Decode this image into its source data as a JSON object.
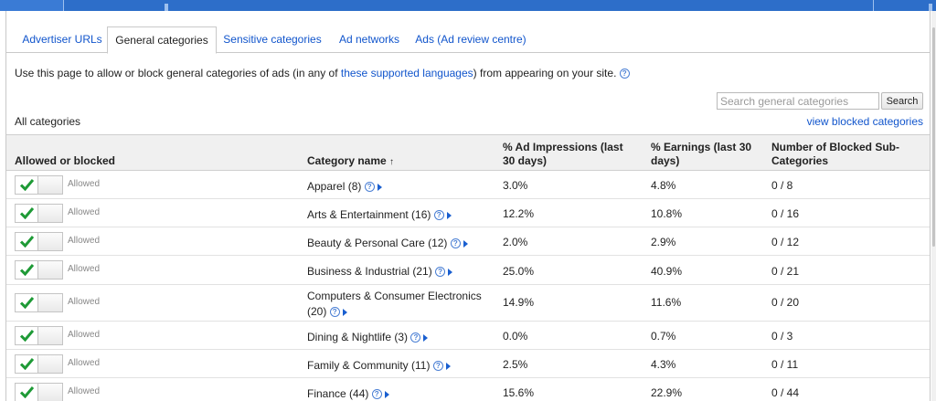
{
  "tabs": [
    {
      "label": "Advertiser URLs"
    },
    {
      "label": "General categories"
    },
    {
      "label": "Sensitive categories"
    },
    {
      "label": "Ad networks"
    },
    {
      "label": "Ads (Ad review centre)"
    }
  ],
  "intro": {
    "before": "Use this page to allow or block general categories of ads (in any of ",
    "link": "these supported languages",
    "after": ") from appearing on your site."
  },
  "search": {
    "placeholder": "Search general categories",
    "button": "Search"
  },
  "all_categories": "All categories",
  "view_blocked": "view blocked categories",
  "columns": {
    "status": "Allowed or blocked",
    "name": "Category name",
    "sort_indicator": "↑",
    "impressions_1": "% Ad Impressions (last",
    "impressions_2": "30 days)",
    "earnings_1": "% Earnings (last 30",
    "earnings_2": "days)",
    "blocked_1": "Number of Blocked Sub-",
    "blocked_2": "Categories"
  },
  "rows": [
    {
      "status": "Allowed",
      "name": "Apparel (8)",
      "impressions": "3.0%",
      "earnings": "4.8%",
      "blocked": "0 / 8"
    },
    {
      "status": "Allowed",
      "name": "Arts & Entertainment (16)",
      "impressions": "12.2%",
      "earnings": "10.8%",
      "blocked": "0 / 16"
    },
    {
      "status": "Allowed",
      "name": "Beauty & Personal Care (12)",
      "impressions": "2.0%",
      "earnings": "2.9%",
      "blocked": "0 / 12"
    },
    {
      "status": "Allowed",
      "name": "Business & Industrial (21)",
      "impressions": "25.0%",
      "earnings": "40.9%",
      "blocked": "0 / 21"
    },
    {
      "status": "Allowed",
      "name_line1": "Computers & Consumer Electronics",
      "name_line2": "(20)",
      "impressions": "14.9%",
      "earnings": "11.6%",
      "blocked": "0 / 20"
    },
    {
      "status": "Allowed",
      "name": "Dining & Nightlife (3)",
      "impressions": "0.0%",
      "earnings": "0.7%",
      "blocked": "0 / 3"
    },
    {
      "status": "Allowed",
      "name": "Family & Community (11)",
      "impressions": "2.5%",
      "earnings": "4.3%",
      "blocked": "0 / 11"
    },
    {
      "status": "Allowed",
      "name": "Finance (44)",
      "impressions": "15.6%",
      "earnings": "22.9%",
      "blocked": "0 / 44"
    }
  ],
  "colors": {
    "link": "#1155cc",
    "check": "#1e9a36",
    "header_bg": "#f0f0f0",
    "topbar": "#2d6ec9"
  },
  "icons": {
    "help": "question-circle-icon",
    "expand": "triangle-right-icon",
    "check": "checkmark-icon"
  }
}
